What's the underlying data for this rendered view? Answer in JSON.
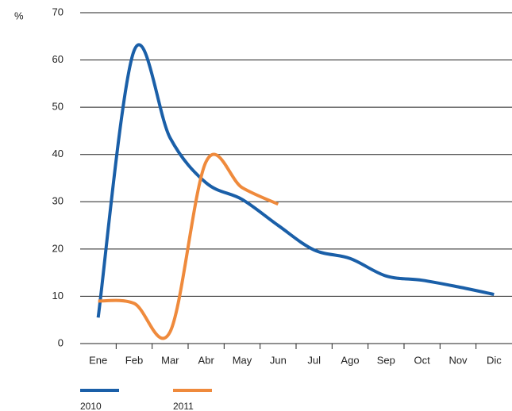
{
  "chart_data": {
    "type": "line",
    "y_label": "%",
    "categories": [
      "Ene",
      "Feb",
      "Mar",
      "Abr",
      "May",
      "Jun",
      "Jul",
      "Ago",
      "Sep",
      "Oct",
      "Nov",
      "Dic"
    ],
    "series": [
      {
        "name": "2010",
        "color": "#1a5fa8",
        "values": [
          5.5,
          62,
          43.5,
          34,
          30.5,
          25,
          19.8,
          18,
          14.3,
          13.4,
          12,
          10.4
        ]
      },
      {
        "name": "2011",
        "color": "#ef8a3c",
        "values": [
          9,
          8.5,
          2.5,
          38.5,
          33,
          29.5,
          null,
          null,
          null,
          null,
          null,
          null
        ]
      }
    ],
    "ylim": [
      0,
      70
    ],
    "yticks": [
      0,
      10,
      20,
      30,
      40,
      50,
      60,
      70
    ],
    "grid": true
  }
}
